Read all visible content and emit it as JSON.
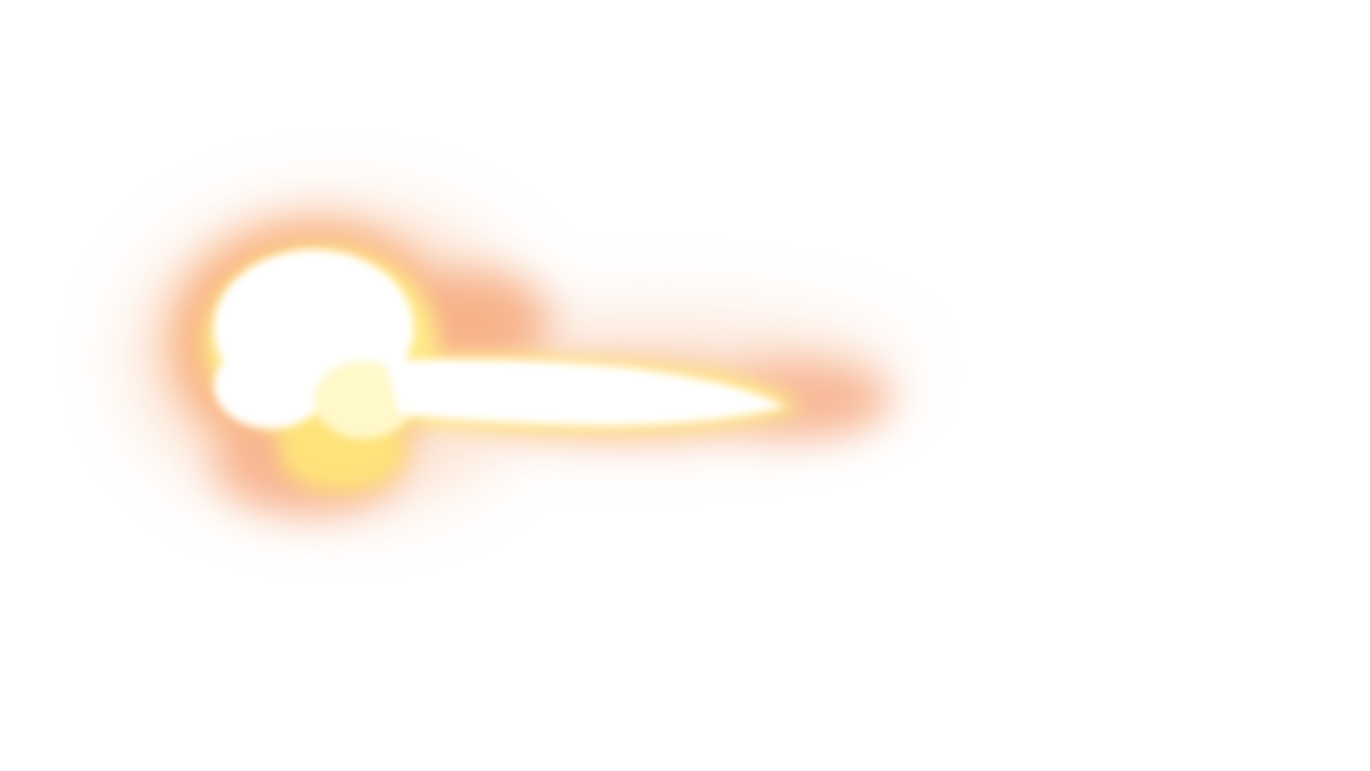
{
  "scene": {
    "subject": "muzzle-flash",
    "background_color": "#ffffff",
    "colors": {
      "core": "#ffffff",
      "inner_glow": "#fff8c8",
      "yellow": "#ffe98a",
      "orange_haze": "#f7a064",
      "outer_haze": "#fbd0b4"
    }
  }
}
